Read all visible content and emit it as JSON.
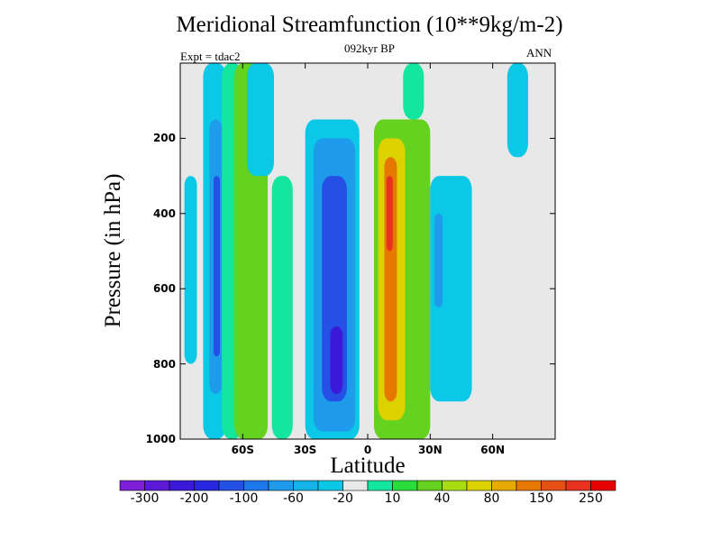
{
  "chart_data": {
    "type": "heatmap",
    "title": "Meridional Streamfunction (10**9kg/m-2)",
    "subtitle": "092kyr BP",
    "left_annotation": "Expt = tdac2",
    "right_annotation": "ANN",
    "xlabel": "Latitude",
    "ylabel": "Pressure (in hPa)",
    "x_ticks": [
      {
        "value": -60,
        "label": "60S"
      },
      {
        "value": -30,
        "label": "30S"
      },
      {
        "value": 0,
        "label": "0"
      },
      {
        "value": 30,
        "label": "30N"
      },
      {
        "value": 60,
        "label": "60N"
      }
    ],
    "y_ticks": [
      {
        "value": 200,
        "label": "200"
      },
      {
        "value": 400,
        "label": "400"
      },
      {
        "value": 600,
        "label": "600"
      },
      {
        "value": 800,
        "label": "800"
      },
      {
        "value": 1000,
        "label": "1000"
      }
    ],
    "xlim": [
      -90,
      90
    ],
    "ylim": [
      0,
      1000
    ],
    "colorbar": {
      "colors": [
        "#7d1ed8",
        "#5c1ad8",
        "#3a1ad8",
        "#2828e0",
        "#2450e6",
        "#1e78eb",
        "#1e9beb",
        "#14b4e6",
        "#0ac8e6",
        "#e8e8e8",
        "#14e6a0",
        "#28dc3c",
        "#64d21e",
        "#aadc14",
        "#dcd200",
        "#e6aa00",
        "#e67800",
        "#e65014",
        "#e6321e",
        "#e60000"
      ],
      "labels": [
        {
          "index": 1,
          "text": "-300"
        },
        {
          "index": 3,
          "text": "-200"
        },
        {
          "index": 5,
          "text": "-100"
        },
        {
          "index": 7,
          "text": "-60"
        },
        {
          "index": 9,
          "text": "-20"
        },
        {
          "index": 11,
          "text": "10"
        },
        {
          "index": 13,
          "text": "40"
        },
        {
          "index": 15,
          "text": "80"
        },
        {
          "index": 17,
          "text": "150"
        },
        {
          "index": 19,
          "text": "250"
        }
      ]
    },
    "cells": [
      {
        "lat": [
          -79,
          -68
        ],
        "p": [
          0,
          1000
        ],
        "v": -20
      },
      {
        "lat": [
          -76,
          -70
        ],
        "p": [
          150,
          880
        ],
        "v": -60
      },
      {
        "lat": [
          -74,
          -71
        ],
        "p": [
          300,
          780
        ],
        "v": -100
      },
      {
        "lat": [
          -88,
          -82
        ],
        "p": [
          300,
          800
        ],
        "v": -20
      },
      {
        "lat": [
          -70,
          -60
        ],
        "p": [
          0,
          1000
        ],
        "v": 10
      },
      {
        "lat": [
          -64,
          -48
        ],
        "p": [
          0,
          1000
        ],
        "v": 40
      },
      {
        "lat": [
          -58,
          -45
        ],
        "p": [
          0,
          300
        ],
        "v": -20
      },
      {
        "lat": [
          -46,
          -36
        ],
        "p": [
          300,
          1000
        ],
        "v": 10
      },
      {
        "lat": [
          -30,
          -4
        ],
        "p": [
          150,
          1000
        ],
        "v": -20
      },
      {
        "lat": [
          -26,
          -6
        ],
        "p": [
          200,
          980
        ],
        "v": -60
      },
      {
        "lat": [
          -22,
          -10
        ],
        "p": [
          300,
          900
        ],
        "v": -100
      },
      {
        "lat": [
          -18,
          -12
        ],
        "p": [
          700,
          880
        ],
        "v": -200
      },
      {
        "lat": [
          3,
          30
        ],
        "p": [
          150,
          1000
        ],
        "v": 40
      },
      {
        "lat": [
          5,
          18
        ],
        "p": [
          200,
          950
        ],
        "v": 80
      },
      {
        "lat": [
          8,
          14
        ],
        "p": [
          250,
          900
        ],
        "v": 150
      },
      {
        "lat": [
          9,
          12
        ],
        "p": [
          300,
          500
        ],
        "v": 250
      },
      {
        "lat": [
          17,
          27
        ],
        "p": [
          0,
          150
        ],
        "v": 10
      },
      {
        "lat": [
          30,
          50
        ],
        "p": [
          300,
          900
        ],
        "v": -20
      },
      {
        "lat": [
          32,
          36
        ],
        "p": [
          400,
          650
        ],
        "v": -60
      },
      {
        "lat": [
          67,
          77
        ],
        "p": [
          0,
          250
        ],
        "v": -20
      }
    ]
  }
}
